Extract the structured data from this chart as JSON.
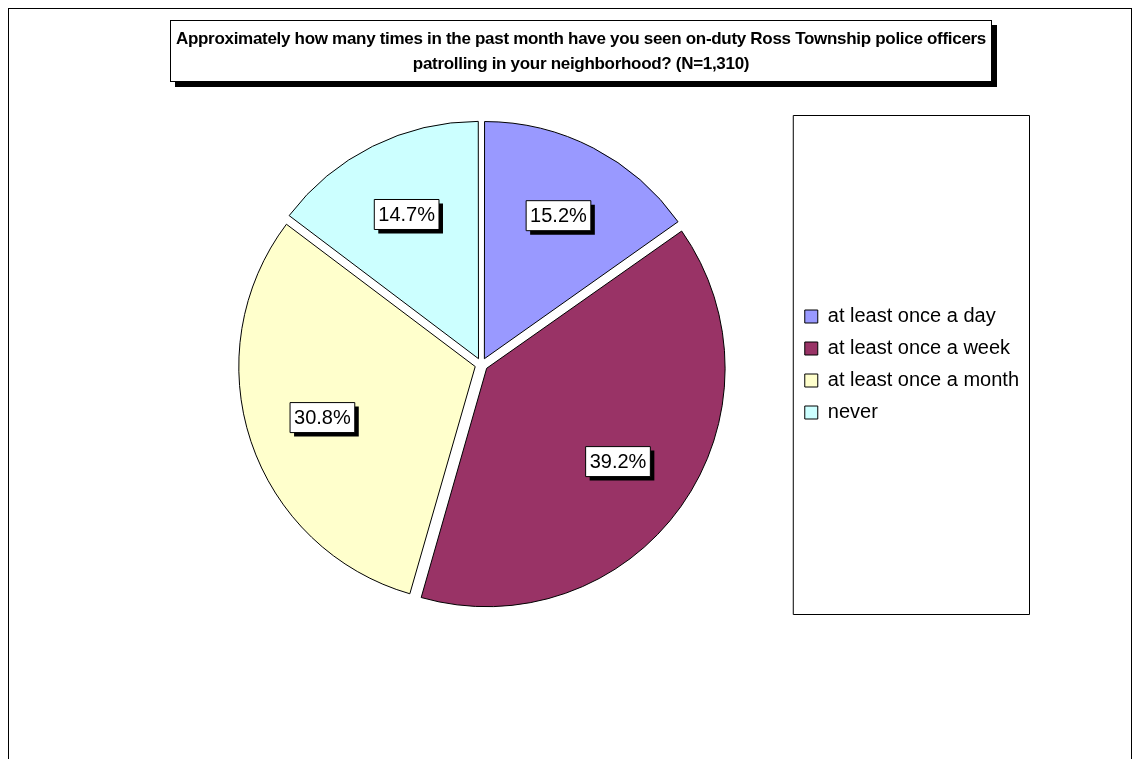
{
  "chart_data": {
    "type": "pie",
    "title": "Approximately how many times in the past month have you seen on-duty Ross Township police officers patrolling in your neighborhood? (N=1,310)",
    "categories": [
      "at least once a day",
      "at least once a week",
      "at least once a month",
      "never"
    ],
    "values": [
      15.2,
      39.2,
      30.8,
      14.7
    ],
    "colors": [
      "#9999ff",
      "#993366",
      "#ffffcc",
      "#ccffff"
    ],
    "value_labels": [
      "15.2%",
      "39.2%",
      "30.8%",
      "14.7%"
    ],
    "legend": "right"
  }
}
